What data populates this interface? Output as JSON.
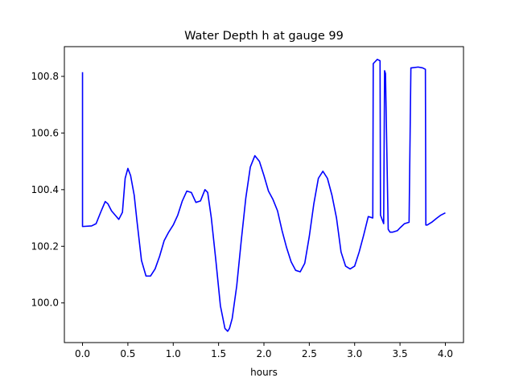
{
  "chart_data": {
    "type": "line",
    "title": "Water Depth h at gauge 99",
    "xlabel": "hours",
    "ylabel": "",
    "xlim": [
      -0.2,
      4.2
    ],
    "ylim": [
      99.86,
      100.905
    ],
    "xticks": [
      0.0,
      0.5,
      1.0,
      1.5,
      2.0,
      2.5,
      3.0,
      3.5,
      4.0
    ],
    "xtick_labels": [
      "0.0",
      "0.5",
      "1.0",
      "1.5",
      "2.0",
      "2.5",
      "3.0",
      "3.5",
      "4.0"
    ],
    "yticks": [
      100.0,
      100.2,
      100.4,
      100.6,
      100.8
    ],
    "ytick_labels": [
      "100.0",
      "100.2",
      "100.4",
      "100.6",
      "100.8"
    ],
    "grid": false,
    "series": [
      {
        "color": "#0000ff",
        "x": [
          0.0,
          0.0,
          0.005,
          0.1,
          0.15,
          0.2,
          0.25,
          0.28,
          0.32,
          0.36,
          0.4,
          0.44,
          0.47,
          0.5,
          0.53,
          0.57,
          0.6,
          0.65,
          0.7,
          0.75,
          0.8,
          0.85,
          0.9,
          0.95,
          1.0,
          1.05,
          1.1,
          1.15,
          1.2,
          1.25,
          1.3,
          1.35,
          1.38,
          1.42,
          1.47,
          1.52,
          1.57,
          1.6,
          1.62,
          1.65,
          1.7,
          1.75,
          1.8,
          1.85,
          1.9,
          1.95,
          2.0,
          2.05,
          2.1,
          2.15,
          2.2,
          2.25,
          2.3,
          2.35,
          2.4,
          2.45,
          2.5,
          2.55,
          2.6,
          2.65,
          2.7,
          2.75,
          2.8,
          2.85,
          2.9,
          2.95,
          3.0,
          3.05,
          3.1,
          3.15,
          3.2,
          3.205,
          3.25,
          3.28,
          3.285,
          3.32,
          3.33,
          3.34,
          3.37,
          3.38,
          3.39,
          3.42,
          3.47,
          3.5,
          3.55,
          3.6,
          3.62,
          3.625,
          3.7,
          3.75,
          3.78,
          3.785,
          3.8,
          3.85,
          3.9,
          3.95,
          4.0
        ],
        "y": [
          100.815,
          100.27,
          100.27,
          100.272,
          100.28,
          100.32,
          100.358,
          100.35,
          100.325,
          100.31,
          100.295,
          100.32,
          100.44,
          100.475,
          100.45,
          100.38,
          100.29,
          100.15,
          100.095,
          100.095,
          100.12,
          100.165,
          100.22,
          100.25,
          100.275,
          100.31,
          100.36,
          100.395,
          100.39,
          100.355,
          100.36,
          100.4,
          100.39,
          100.3,
          100.15,
          99.99,
          99.91,
          99.9,
          99.91,
          99.945,
          100.06,
          100.22,
          100.37,
          100.48,
          100.52,
          100.5,
          100.45,
          100.395,
          100.365,
          100.325,
          100.255,
          100.195,
          100.145,
          100.115,
          100.11,
          100.14,
          100.235,
          100.35,
          100.44,
          100.465,
          100.44,
          100.38,
          100.3,
          100.18,
          100.13,
          100.12,
          100.13,
          100.18,
          100.24,
          100.305,
          100.3,
          100.845,
          100.86,
          100.855,
          100.31,
          100.28,
          100.82,
          100.81,
          100.26,
          100.255,
          100.25,
          100.25,
          100.255,
          100.265,
          100.28,
          100.285,
          100.83,
          100.83,
          100.833,
          100.83,
          100.825,
          100.275,
          100.275,
          100.285,
          100.298,
          100.31,
          100.318
        ]
      }
    ]
  }
}
